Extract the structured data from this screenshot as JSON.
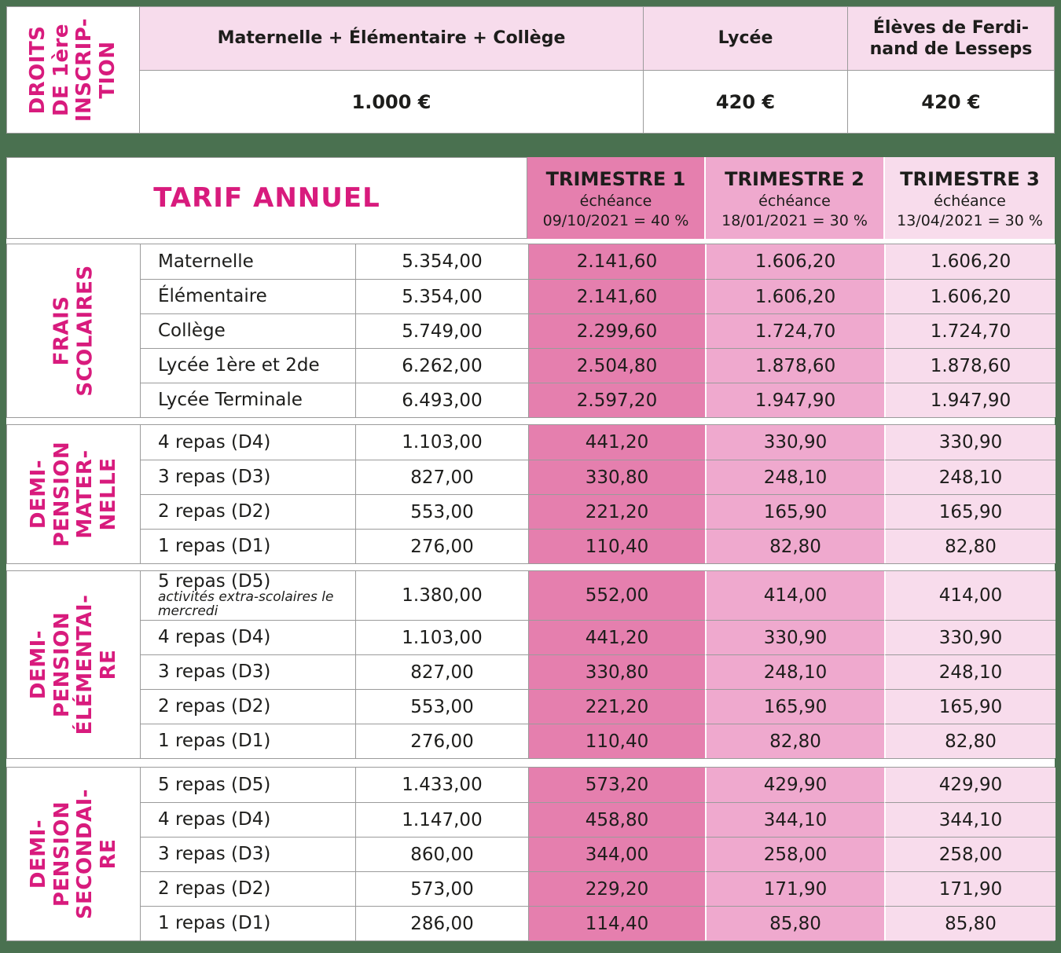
{
  "colors": {
    "page_background": "#4a7150",
    "header_pink": "#f7dcec",
    "trimester1_pink": "#e57fae",
    "trimester2_pink": "#efa9ce",
    "trimester3_pink": "#f8dcec",
    "accent_magenta": "#d81b7d",
    "text": "#1d1d1b",
    "border": "#9b9b9b"
  },
  "inscription_table": {
    "side_label": "DROITS\nDE 1ère\nINSCRIP-\nTION",
    "columns": [
      {
        "label": "Maternelle + Élémentaire + Collège",
        "value": "1.000 €"
      },
      {
        "label": "Lycée",
        "value": "420 €"
      },
      {
        "label": "Élèves de Ferdi-\nnand de Lesseps",
        "value": "420 €"
      }
    ]
  },
  "tariff_table": {
    "title": "TARIF ANNUEL",
    "trimesters": [
      {
        "name": "TRIMESTRE 1",
        "echeance_label": "échéance",
        "due": "09/10/2021 = 40 %"
      },
      {
        "name": "TRIMESTRE 2",
        "echeance_label": "échéance",
        "due": "18/01/2021 = 30 %"
      },
      {
        "name": "TRIMESTRE 3",
        "echeance_label": "échéance",
        "due": "13/04/2021 = 30 %"
      }
    ],
    "sections": [
      {
        "side_label": "FRAIS\nSCOLAIRES",
        "rows": [
          {
            "item": "Maternelle",
            "annual": "5.354,00",
            "t1": "2.141,60",
            "t2": "1.606,20",
            "t3": "1.606,20"
          },
          {
            "item": "Élémentaire",
            "annual": "5.354,00",
            "t1": "2.141,60",
            "t2": "1.606,20",
            "t3": "1.606,20"
          },
          {
            "item": "Collège",
            "annual": "5.749,00",
            "t1": "2.299,60",
            "t2": "1.724,70",
            "t3": "1.724,70"
          },
          {
            "item": "Lycée 1ère et 2de",
            "annual": "6.262,00",
            "t1": "2.504,80",
            "t2": "1.878,60",
            "t3": "1.878,60"
          },
          {
            "item": "Lycée Terminale",
            "annual": "6.493,00",
            "t1": "2.597,20",
            "t2": "1.947,90",
            "t3": "1.947,90"
          }
        ]
      },
      {
        "side_label": "DEMI-\nPENSION\nMATER-\nNELLE",
        "rows": [
          {
            "item": "4 repas (D4)",
            "annual": "1.103,00",
            "t1": "441,20",
            "t2": "330,90",
            "t3": "330,90"
          },
          {
            "item": "3 repas (D3)",
            "annual": "827,00",
            "t1": "330,80",
            "t2": "248,10",
            "t3": "248,10"
          },
          {
            "item": "2 repas (D2)",
            "annual": "553,00",
            "t1": "221,20",
            "t2": "165,90",
            "t3": "165,90"
          },
          {
            "item": "1 repas (D1)",
            "annual": "276,00",
            "t1": "110,40",
            "t2": "82,80",
            "t3": "82,80"
          }
        ]
      },
      {
        "side_label": "DEMI-\nPENSION\nÉLÉMENTAI-\nRE",
        "rows": [
          {
            "item": "5 repas (D5)",
            "note": "activités extra-scolaires le mercredi",
            "annual": "1.380,00",
            "t1": "552,00",
            "t2": "414,00",
            "t3": "414,00"
          },
          {
            "item": "4 repas (D4)",
            "annual": "1.103,00",
            "t1": "441,20",
            "t2": "330,90",
            "t3": "330,90"
          },
          {
            "item": "3 repas (D3)",
            "annual": "827,00",
            "t1": "330,80",
            "t2": "248,10",
            "t3": "248,10"
          },
          {
            "item": "2 repas (D2)",
            "annual": "553,00",
            "t1": "221,20",
            "t2": "165,90",
            "t3": "165,90"
          },
          {
            "item": "1 repas (D1)",
            "annual": "276,00",
            "t1": "110,40",
            "t2": "82,80",
            "t3": "82,80"
          }
        ]
      },
      {
        "side_label": "DEMI-\nPENSION\nSECONDAI-\nRE",
        "rows": [
          {
            "item": "5 repas (D5)",
            "annual": "1.433,00",
            "t1": "573,20",
            "t2": "429,90",
            "t3": "429,90"
          },
          {
            "item": "4 repas (D4)",
            "annual": "1.147,00",
            "t1": "458,80",
            "t2": "344,10",
            "t3": "344,10"
          },
          {
            "item": "3 repas (D3)",
            "annual": "860,00",
            "t1": "344,00",
            "t2": "258,00",
            "t3": "258,00"
          },
          {
            "item": "2 repas (D2)",
            "annual": "573,00",
            "t1": "229,20",
            "t2": "171,90",
            "t3": "171,90"
          },
          {
            "item": "1 repas (D1)",
            "annual": "286,00",
            "t1": "114,40",
            "t2": "85,80",
            "t3": "85,80"
          }
        ]
      }
    ]
  }
}
